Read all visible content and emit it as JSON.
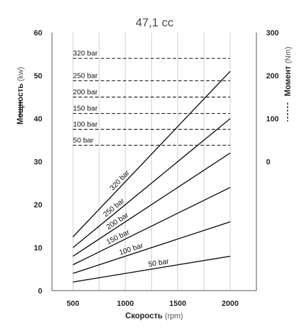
{
  "chart_data": {
    "type": "line",
    "title": "47,1 cc",
    "xlabel": "Скорость",
    "xlabel_unit": "(rpm)",
    "ylabel_left": "Мощность",
    "ylabel_left_unit": "(kw)",
    "ylabel_right": "Момент",
    "ylabel_right_unit": "(Nm)",
    "xlim": [
      300,
      2250
    ],
    "xticks": [
      "500",
      "1000",
      "1500",
      "2000"
    ],
    "ylim": [
      0,
      60
    ],
    "yticks_left": [
      "0",
      "10",
      "20",
      "30",
      "40",
      "50",
      "60"
    ],
    "ylim_right_torque": [
      0,
      300
    ],
    "yticks_right": [
      "0",
      "100",
      "200",
      "300"
    ],
    "legend": {
      "power_symbol": "solid line",
      "torque_symbol": "dashed line"
    },
    "grid": {
      "vertical_lines": true,
      "horizontal_lines": false
    },
    "power_series": [
      {
        "name": "320 bar",
        "x": [
          500,
          2000
        ],
        "y": [
          12.5,
          51
        ]
      },
      {
        "name": "250 bar",
        "x": [
          500,
          2000
        ],
        "y": [
          10,
          40
        ]
      },
      {
        "name": "200 bar",
        "x": [
          500,
          2000
        ],
        "y": [
          8,
          32
        ]
      },
      {
        "name": "150 bar",
        "x": [
          500,
          2000
        ],
        "y": [
          6,
          24
        ]
      },
      {
        "name": "100 bar",
        "x": [
          500,
          2000
        ],
        "y": [
          4,
          16
        ]
      },
      {
        "name": "50 bar",
        "x": [
          500,
          2000
        ],
        "y": [
          2,
          8
        ]
      }
    ],
    "torque_series": [
      {
        "name": "320 bar",
        "torque_nm": 240,
        "x_range": [
          500,
          2000
        ]
      },
      {
        "name": "250 bar",
        "torque_nm": 188,
        "x_range": [
          500,
          2000
        ]
      },
      {
        "name": "200 bar",
        "torque_nm": 150,
        "x_range": [
          500,
          2000
        ]
      },
      {
        "name": "150 bar",
        "torque_nm": 112,
        "x_range": [
          500,
          2000
        ]
      },
      {
        "name": "100 bar",
        "torque_nm": 75,
        "x_range": [
          500,
          2000
        ]
      },
      {
        "name": "50 bar",
        "torque_nm": 38,
        "x_range": [
          500,
          2000
        ]
      }
    ]
  }
}
